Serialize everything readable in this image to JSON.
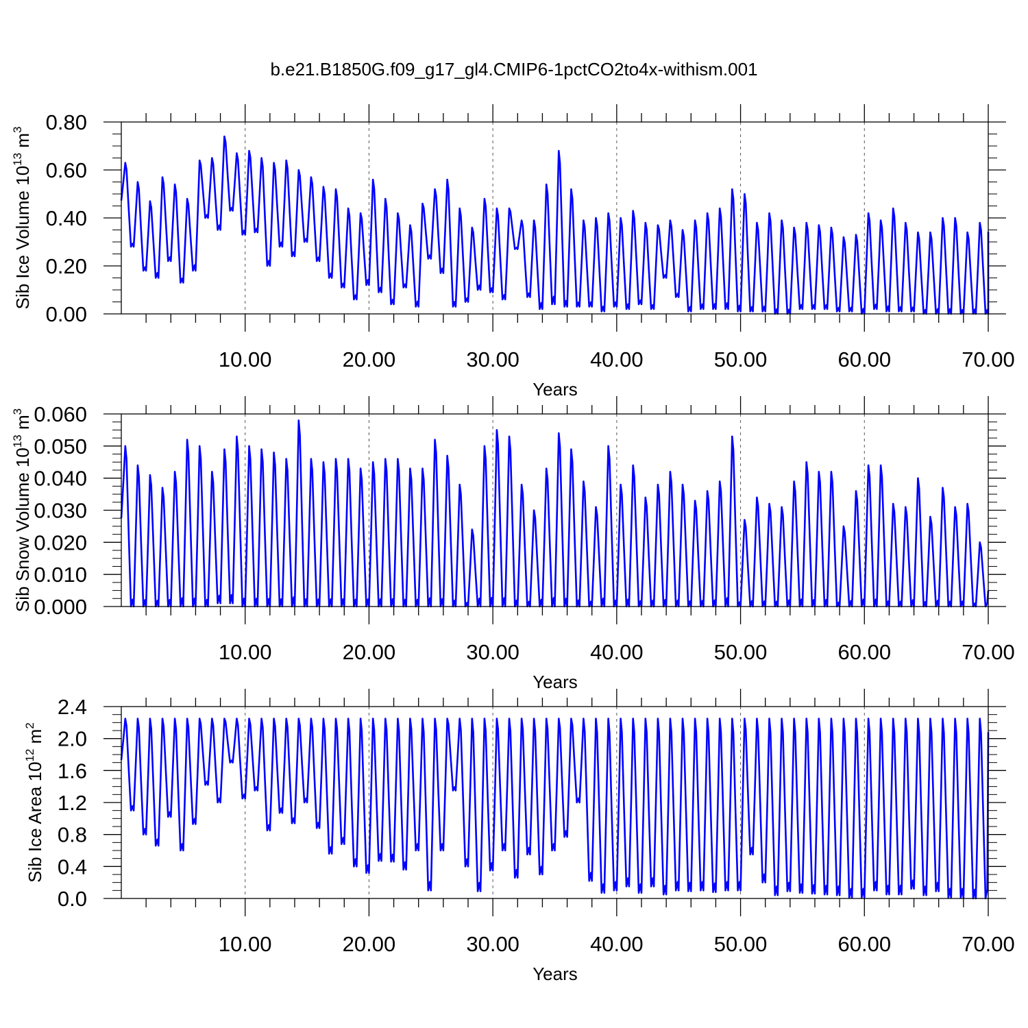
{
  "figure": {
    "title": "b.e21.B1850G.f09_g17_gl4.CMIP6-1pctCO2to4x-withism.001"
  },
  "chart_data": [
    {
      "type": "line",
      "ylabel": {
        "main": "Sib Ice Volume 10",
        "exp": "13",
        "unit": " m",
        "unit_exp": "3"
      },
      "xlabel": "Years",
      "xlim": [
        0,
        70
      ],
      "ylim": [
        0,
        0.8
      ],
      "yticks": [
        "0.00",
        "0.20",
        "0.40",
        "0.60",
        "0.80"
      ],
      "xticks": [
        "10.00",
        "20.00",
        "30.00",
        "40.00",
        "50.00",
        "60.00",
        "70.00"
      ],
      "color": "#0000ff",
      "seasonal": true,
      "peaks": [
        0.63,
        0.55,
        0.47,
        0.57,
        0.54,
        0.48,
        0.64,
        0.65,
        0.74,
        0.67,
        0.68,
        0.65,
        0.63,
        0.64,
        0.6,
        0.57,
        0.53,
        0.52,
        0.44,
        0.42,
        0.56,
        0.48,
        0.42,
        0.37,
        0.46,
        0.52,
        0.56,
        0.44,
        0.36,
        0.48,
        0.44,
        0.44,
        0.39,
        0.39,
        0.54,
        0.68,
        0.52,
        0.39,
        0.4,
        0.42,
        0.4,
        0.43,
        0.38,
        0.37,
        0.39,
        0.35,
        0.39,
        0.42,
        0.44,
        0.52,
        0.5,
        0.38,
        0.42,
        0.39,
        0.36,
        0.38,
        0.37,
        0.36,
        0.32,
        0.33,
        0.42,
        0.39,
        0.44,
        0.38,
        0.34,
        0.34,
        0.4,
        0.4,
        0.34,
        0.38,
        0.34
      ],
      "troughs": [
        0.28,
        0.18,
        0.15,
        0.22,
        0.13,
        0.18,
        0.4,
        0.35,
        0.43,
        0.33,
        0.34,
        0.2,
        0.28,
        0.24,
        0.3,
        0.22,
        0.15,
        0.11,
        0.06,
        0.12,
        0.09,
        0.04,
        0.11,
        0.03,
        0.23,
        0.17,
        0.03,
        0.05,
        0.1,
        0.09,
        0.06,
        0.27,
        0.07,
        0.02,
        0.04,
        0.03,
        0.03,
        0.03,
        0.01,
        0.03,
        0.02,
        0.04,
        0.02,
        0.15,
        0.07,
        0.01,
        0.02,
        0.02,
        0.02,
        0.01,
        0.01,
        0.01,
        0.0,
        0.0,
        0.02,
        0.02,
        0.02,
        0.01,
        0.01,
        0.0,
        0.02,
        0.01,
        0.01,
        0.01,
        0.0,
        0.0,
        0.0,
        0.0,
        0.0,
        0.0
      ],
      "end_value": 0.1
    },
    {
      "type": "line",
      "ylabel": {
        "main": "Sib Snow Volume 10",
        "exp": "13",
        "unit": " m",
        "unit_exp": "3"
      },
      "xlabel": "Years",
      "xlim": [
        0,
        70
      ],
      "ylim": [
        0,
        0.06
      ],
      "yticks": [
        "0.000",
        "0.010",
        "0.020",
        "0.030",
        "0.040",
        "0.050",
        "0.060"
      ],
      "xticks": [
        "10.00",
        "20.00",
        "30.00",
        "40.00",
        "50.00",
        "60.00",
        "70.00"
      ],
      "color": "#0000ff",
      "seasonal": true,
      "peaks": [
        0.05,
        0.044,
        0.041,
        0.037,
        0.042,
        0.052,
        0.05,
        0.042,
        0.049,
        0.053,
        0.05,
        0.049,
        0.048,
        0.046,
        0.058,
        0.046,
        0.045,
        0.046,
        0.046,
        0.043,
        0.045,
        0.046,
        0.046,
        0.043,
        0.043,
        0.052,
        0.047,
        0.038,
        0.024,
        0.05,
        0.055,
        0.053,
        0.038,
        0.03,
        0.043,
        0.054,
        0.049,
        0.039,
        0.031,
        0.05,
        0.038,
        0.044,
        0.034,
        0.038,
        0.042,
        0.038,
        0.033,
        0.036,
        0.039,
        0.053,
        0.027,
        0.034,
        0.032,
        0.031,
        0.039,
        0.045,
        0.042,
        0.042,
        0.025,
        0.036,
        0.044,
        0.044,
        0.032,
        0.031,
        0.04,
        0.028,
        0.037,
        0.031,
        0.032,
        0.02
      ],
      "troughs": [
        0.0,
        0.0,
        0.0,
        0.0,
        0.0,
        0.0,
        0.0,
        0.001,
        0.001,
        0.0,
        0.0,
        0.0,
        0.0,
        0.0,
        0.0,
        0.0,
        0.0,
        0.0,
        0.0,
        0.0,
        0.0,
        0.0,
        0.0,
        0.0,
        0.0,
        0.0,
        0.0,
        0.0,
        0.0,
        0.0,
        0.0,
        0.0,
        0.0,
        0.0,
        0.0,
        0.0,
        0.0,
        0.0,
        0.0,
        0.0,
        0.0,
        0.0,
        0.0,
        0.0,
        0.0,
        0.0,
        0.0,
        0.0,
        0.0,
        0.0,
        0.0,
        0.0,
        0.0,
        0.0,
        0.0,
        0.0,
        0.0,
        0.0,
        0.0,
        0.0,
        0.0,
        0.0,
        0.0,
        0.0,
        0.0,
        0.0,
        0.0,
        0.0,
        0.0,
        0.0
      ],
      "end_value": 0.005
    },
    {
      "type": "line",
      "ylabel": {
        "main": "Sib Ice Area 10",
        "exp": "12",
        "unit": " m",
        "unit_exp": "2"
      },
      "xlabel": "Years",
      "xlim": [
        0,
        70
      ],
      "ylim": [
        0,
        2.4
      ],
      "yticks": [
        "0.0",
        "0.4",
        "0.8",
        "1.2",
        "1.6",
        "2.0",
        "2.4"
      ],
      "xticks": [
        "10.00",
        "20.00",
        "30.00",
        "40.00",
        "50.00",
        "60.00",
        "70.00"
      ],
      "color": "#0000ff",
      "seasonal": true,
      "peaks": [
        2.25,
        2.25,
        2.25,
        2.25,
        2.25,
        2.25,
        2.25,
        2.25,
        2.25,
        2.25,
        2.25,
        2.25,
        2.25,
        2.25,
        2.25,
        2.25,
        2.25,
        2.25,
        2.25,
        2.25,
        2.25,
        2.25,
        2.25,
        2.25,
        2.25,
        2.25,
        2.25,
        2.25,
        2.25,
        2.25,
        2.25,
        2.25,
        2.25,
        2.25,
        2.25,
        2.25,
        2.25,
        2.25,
        2.25,
        2.25,
        2.25,
        2.25,
        2.25,
        2.25,
        2.25,
        2.25,
        2.25,
        2.25,
        2.25,
        2.25,
        2.25,
        2.25,
        2.25,
        2.25,
        2.25,
        2.25,
        2.25,
        2.25,
        2.25,
        2.25,
        2.25,
        2.25,
        2.25,
        2.25,
        2.25,
        2.25,
        2.25,
        2.25,
        2.25,
        2.25
      ],
      "troughs": [
        1.1,
        0.8,
        0.66,
        1.02,
        0.6,
        0.93,
        1.42,
        1.2,
        1.7,
        1.25,
        1.35,
        0.85,
        1.07,
        0.94,
        1.2,
        0.88,
        0.56,
        0.68,
        0.4,
        0.32,
        0.47,
        0.46,
        0.36,
        0.6,
        0.1,
        0.6,
        1.35,
        0.4,
        0.09,
        0.35,
        0.6,
        0.26,
        0.55,
        0.3,
        0.6,
        0.77,
        1.2,
        0.22,
        0.07,
        0.1,
        0.15,
        0.07,
        0.15,
        0.05,
        0.1,
        0.09,
        0.1,
        0.08,
        0.1,
        0.1,
        0.55,
        0.2,
        0.04,
        0.09,
        0.07,
        0.06,
        0.05,
        0.04,
        0.01,
        0.01,
        0.1,
        0.05,
        0.05,
        0.12,
        0.04,
        0.09,
        0.01,
        0.01,
        0.0,
        0.0
      ],
      "end_value": 2.08
    }
  ]
}
